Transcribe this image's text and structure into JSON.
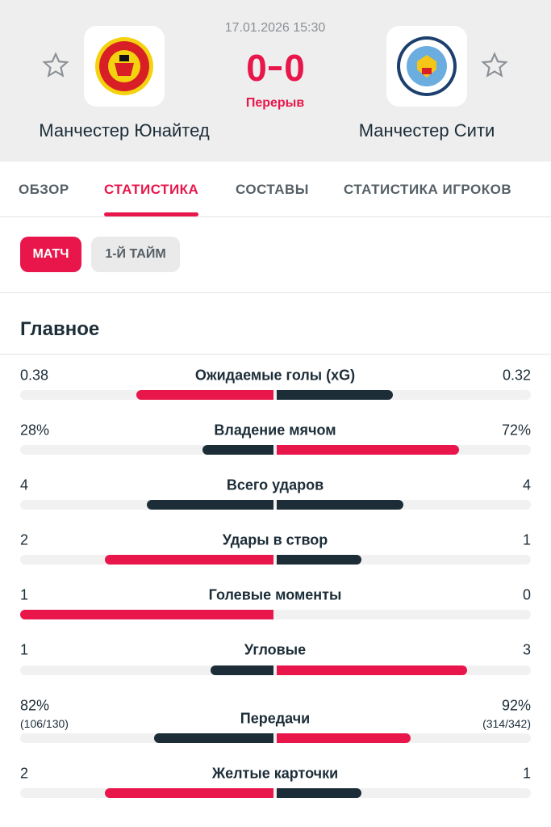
{
  "header": {
    "datetime": "17.01.2026 15:30",
    "status": "Перерыв",
    "home": {
      "name": "Манчестер Юнайтед",
      "score": 0
    },
    "away": {
      "name": "Манчестер Сити",
      "score": 0
    }
  },
  "tabs": [
    "ОБЗОР",
    "СТАТИСТИКА",
    "СОСТАВЫ",
    "СТАТИСТИКА ИГРОКОВ"
  ],
  "active_tab": 1,
  "periods": [
    "МАТЧ",
    "1-Й ТАЙМ"
  ],
  "active_period": 0,
  "section_title": "Главное",
  "colors": {
    "leading": "#e8164b",
    "other": "#1c2d38"
  },
  "stats": [
    {
      "name": "Ожидаемые голы (xG)",
      "values": [
        0.38,
        0.32
      ]
    },
    {
      "name": "Владение мячом",
      "values": [
        28,
        72
      ],
      "value_labels": [
        "28%",
        "72%"
      ]
    },
    {
      "name": "Всего ударов",
      "values": [
        4,
        4
      ]
    },
    {
      "name": "Удары в створ",
      "values": [
        2,
        1
      ]
    },
    {
      "name": "Голевые моменты",
      "values": [
        1,
        0
      ]
    },
    {
      "name": "Угловые",
      "values": [
        1,
        3
      ]
    },
    {
      "name": "Передачи",
      "values": [
        82,
        92
      ],
      "value_labels": [
        "82%",
        "92%"
      ],
      "details": [
        "(106/130)",
        "(314/342)"
      ]
    },
    {
      "name": "Желтые карточки",
      "values": [
        2,
        1
      ]
    }
  ]
}
